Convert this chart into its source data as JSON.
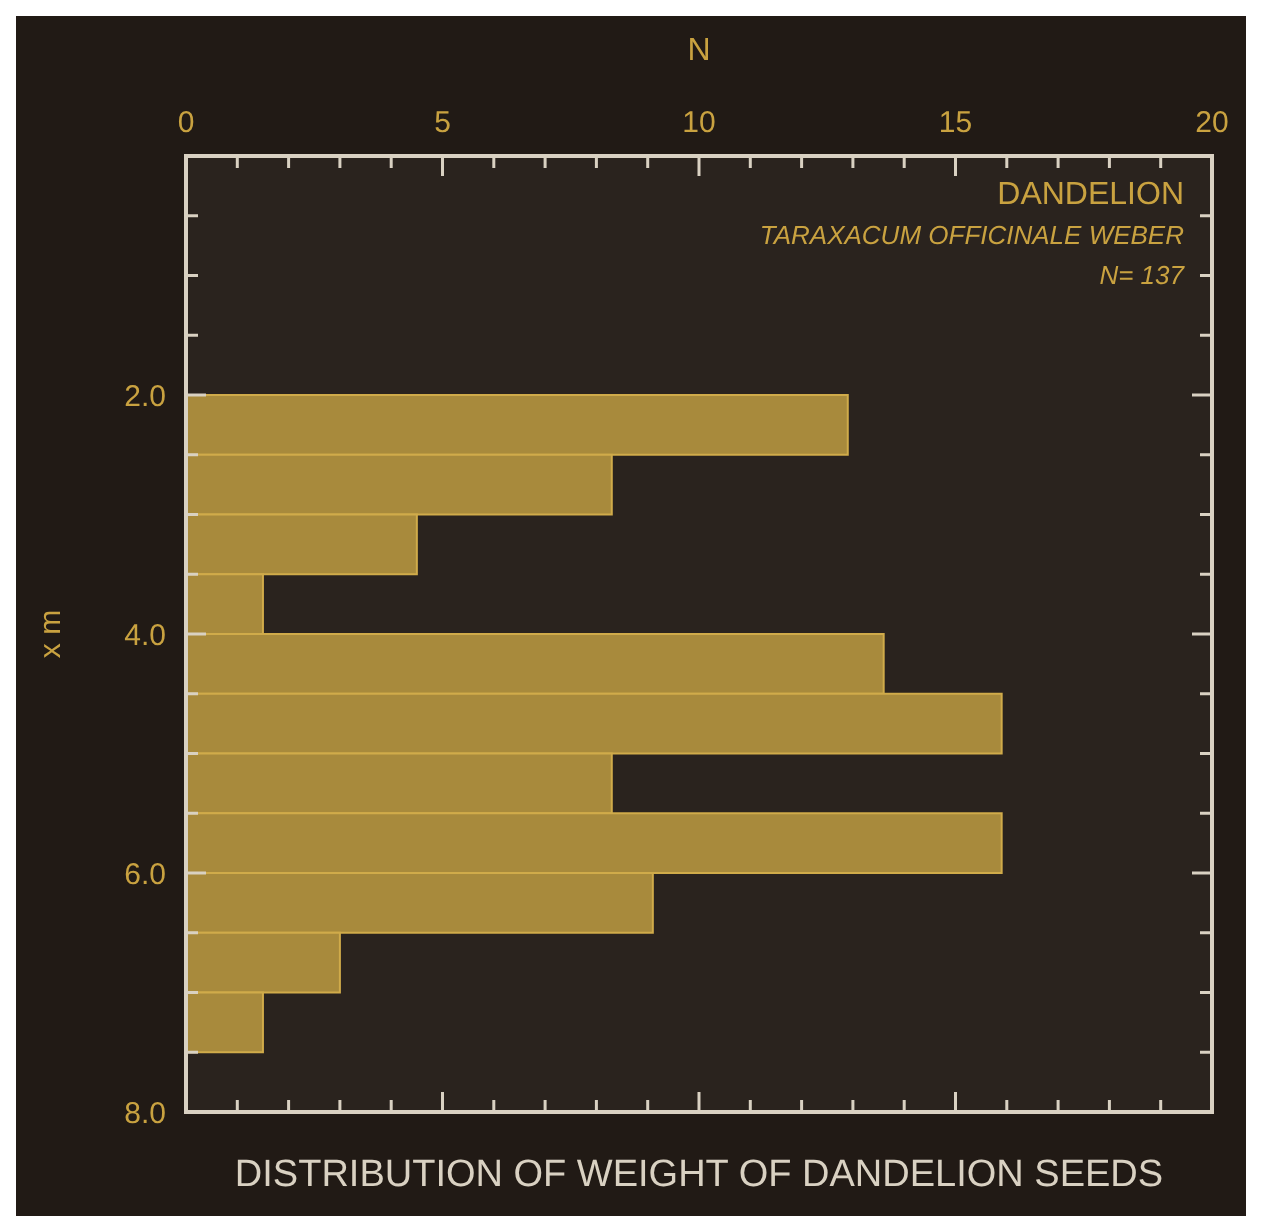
{
  "chart_data": {
    "type": "histogram",
    "orientation": "horizontal",
    "title": "DISTRIBUTION OF WEIGHT OF DANDELION SEEDS",
    "xlabel": "N",
    "ylabel": "x m",
    "annotations": [
      "DANDELION",
      "TARAXACUM OFFICINALE WEBER",
      "N= 137"
    ],
    "bins": [
      2.0,
      2.5,
      3.0,
      3.5,
      4.0,
      4.5,
      5.0,
      5.5,
      6.0,
      6.5,
      7.0,
      7.5
    ],
    "values": [
      12.9,
      8.3,
      4.5,
      1.5,
      13.6,
      15.9,
      8.3,
      15.9,
      9.1,
      3.0,
      1.5
    ],
    "color": "#a88a3c",
    "xlim": [
      0,
      20
    ],
    "xticks": [
      0,
      {
        "value": 1,
        "label": null
      },
      {
        "value": 2,
        "label": null
      },
      {
        "value": 3,
        "label": null
      },
      {
        "value": 4,
        "label": null
      },
      5,
      {
        "value": 6,
        "label": null
      },
      {
        "value": 7,
        "label": null
      },
      {
        "value": 8,
        "label": null
      },
      {
        "value": 9,
        "label": null
      },
      10,
      {
        "value": 11,
        "label": null
      },
      {
        "value": 12,
        "label": null
      },
      {
        "value": 13,
        "label": null
      },
      {
        "value": 14,
        "label": null
      },
      15,
      {
        "value": 16,
        "label": null
      },
      {
        "value": 17,
        "label": null
      },
      {
        "value": 18,
        "label": null
      },
      {
        "value": 19,
        "label": null
      },
      20
    ],
    "ylim": [
      8,
      0
    ],
    "yticks": [
      {
        "value": 0.5,
        "label": null
      },
      {
        "value": 1,
        "label": null
      },
      {
        "value": 1.5,
        "label": null
      },
      {
        "value": 2,
        "label": "2.0"
      },
      {
        "value": 2.5,
        "label": null
      },
      {
        "value": 3,
        "label": null
      },
      {
        "value": 3.5,
        "label": null
      },
      {
        "value": 4,
        "label": "4.0"
      },
      {
        "value": 4.5,
        "label": null
      },
      {
        "value": 5,
        "label": null
      },
      {
        "value": 5.5,
        "label": null
      },
      {
        "value": 6,
        "label": "6.0"
      },
      {
        "value": 6.5,
        "label": null
      },
      {
        "value": 7,
        "label": null
      },
      {
        "value": 7.5,
        "label": null
      },
      {
        "value": 8,
        "label": "8.0"
      }
    ],
    "grid": false
  }
}
